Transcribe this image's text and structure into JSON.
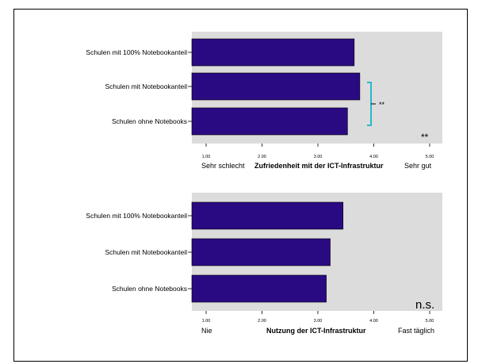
{
  "chart_data": [
    {
      "type": "bar",
      "orientation": "horizontal",
      "categories": [
        "Schulen mit 100% Notebookanteil",
        "Schulen mit Notebookanteil",
        "Schulen ohne Notebooks"
      ],
      "values": [
        3.65,
        3.75,
        3.53
      ],
      "xlim": [
        1.0,
        5.0
      ],
      "ticks": [
        "1.00",
        "2.00",
        "3.00",
        "4.00",
        "5.00"
      ],
      "xlabel": "Zufriedenheit mit der ICT-Infrastruktur",
      "scale_low": "Sehr schlecht",
      "scale_high": "Sehr gut",
      "significance_overall": "**",
      "significance_bracket": "**",
      "bar_color": "#2a0a82",
      "background_color": "#dcdcdc",
      "bracket_color": "#2ab8c8"
    },
    {
      "type": "bar",
      "orientation": "horizontal",
      "categories": [
        "Schulen mit 100% Notebookanteil",
        "Schulen mit Notebookanteil",
        "Schulen ohne Notebooks"
      ],
      "values": [
        3.45,
        3.22,
        3.15
      ],
      "xlim": [
        1.0,
        5.0
      ],
      "ticks": [
        "1.00",
        "2.00",
        "3.00",
        "4.00",
        "5.00"
      ],
      "xlabel": "Nutzung der ICT-Infrastruktur",
      "scale_low": "Nie",
      "scale_high": "Fast täglich",
      "significance_overall": "n.s.",
      "bar_color": "#2a0a82",
      "background_color": "#dcdcdc"
    }
  ]
}
